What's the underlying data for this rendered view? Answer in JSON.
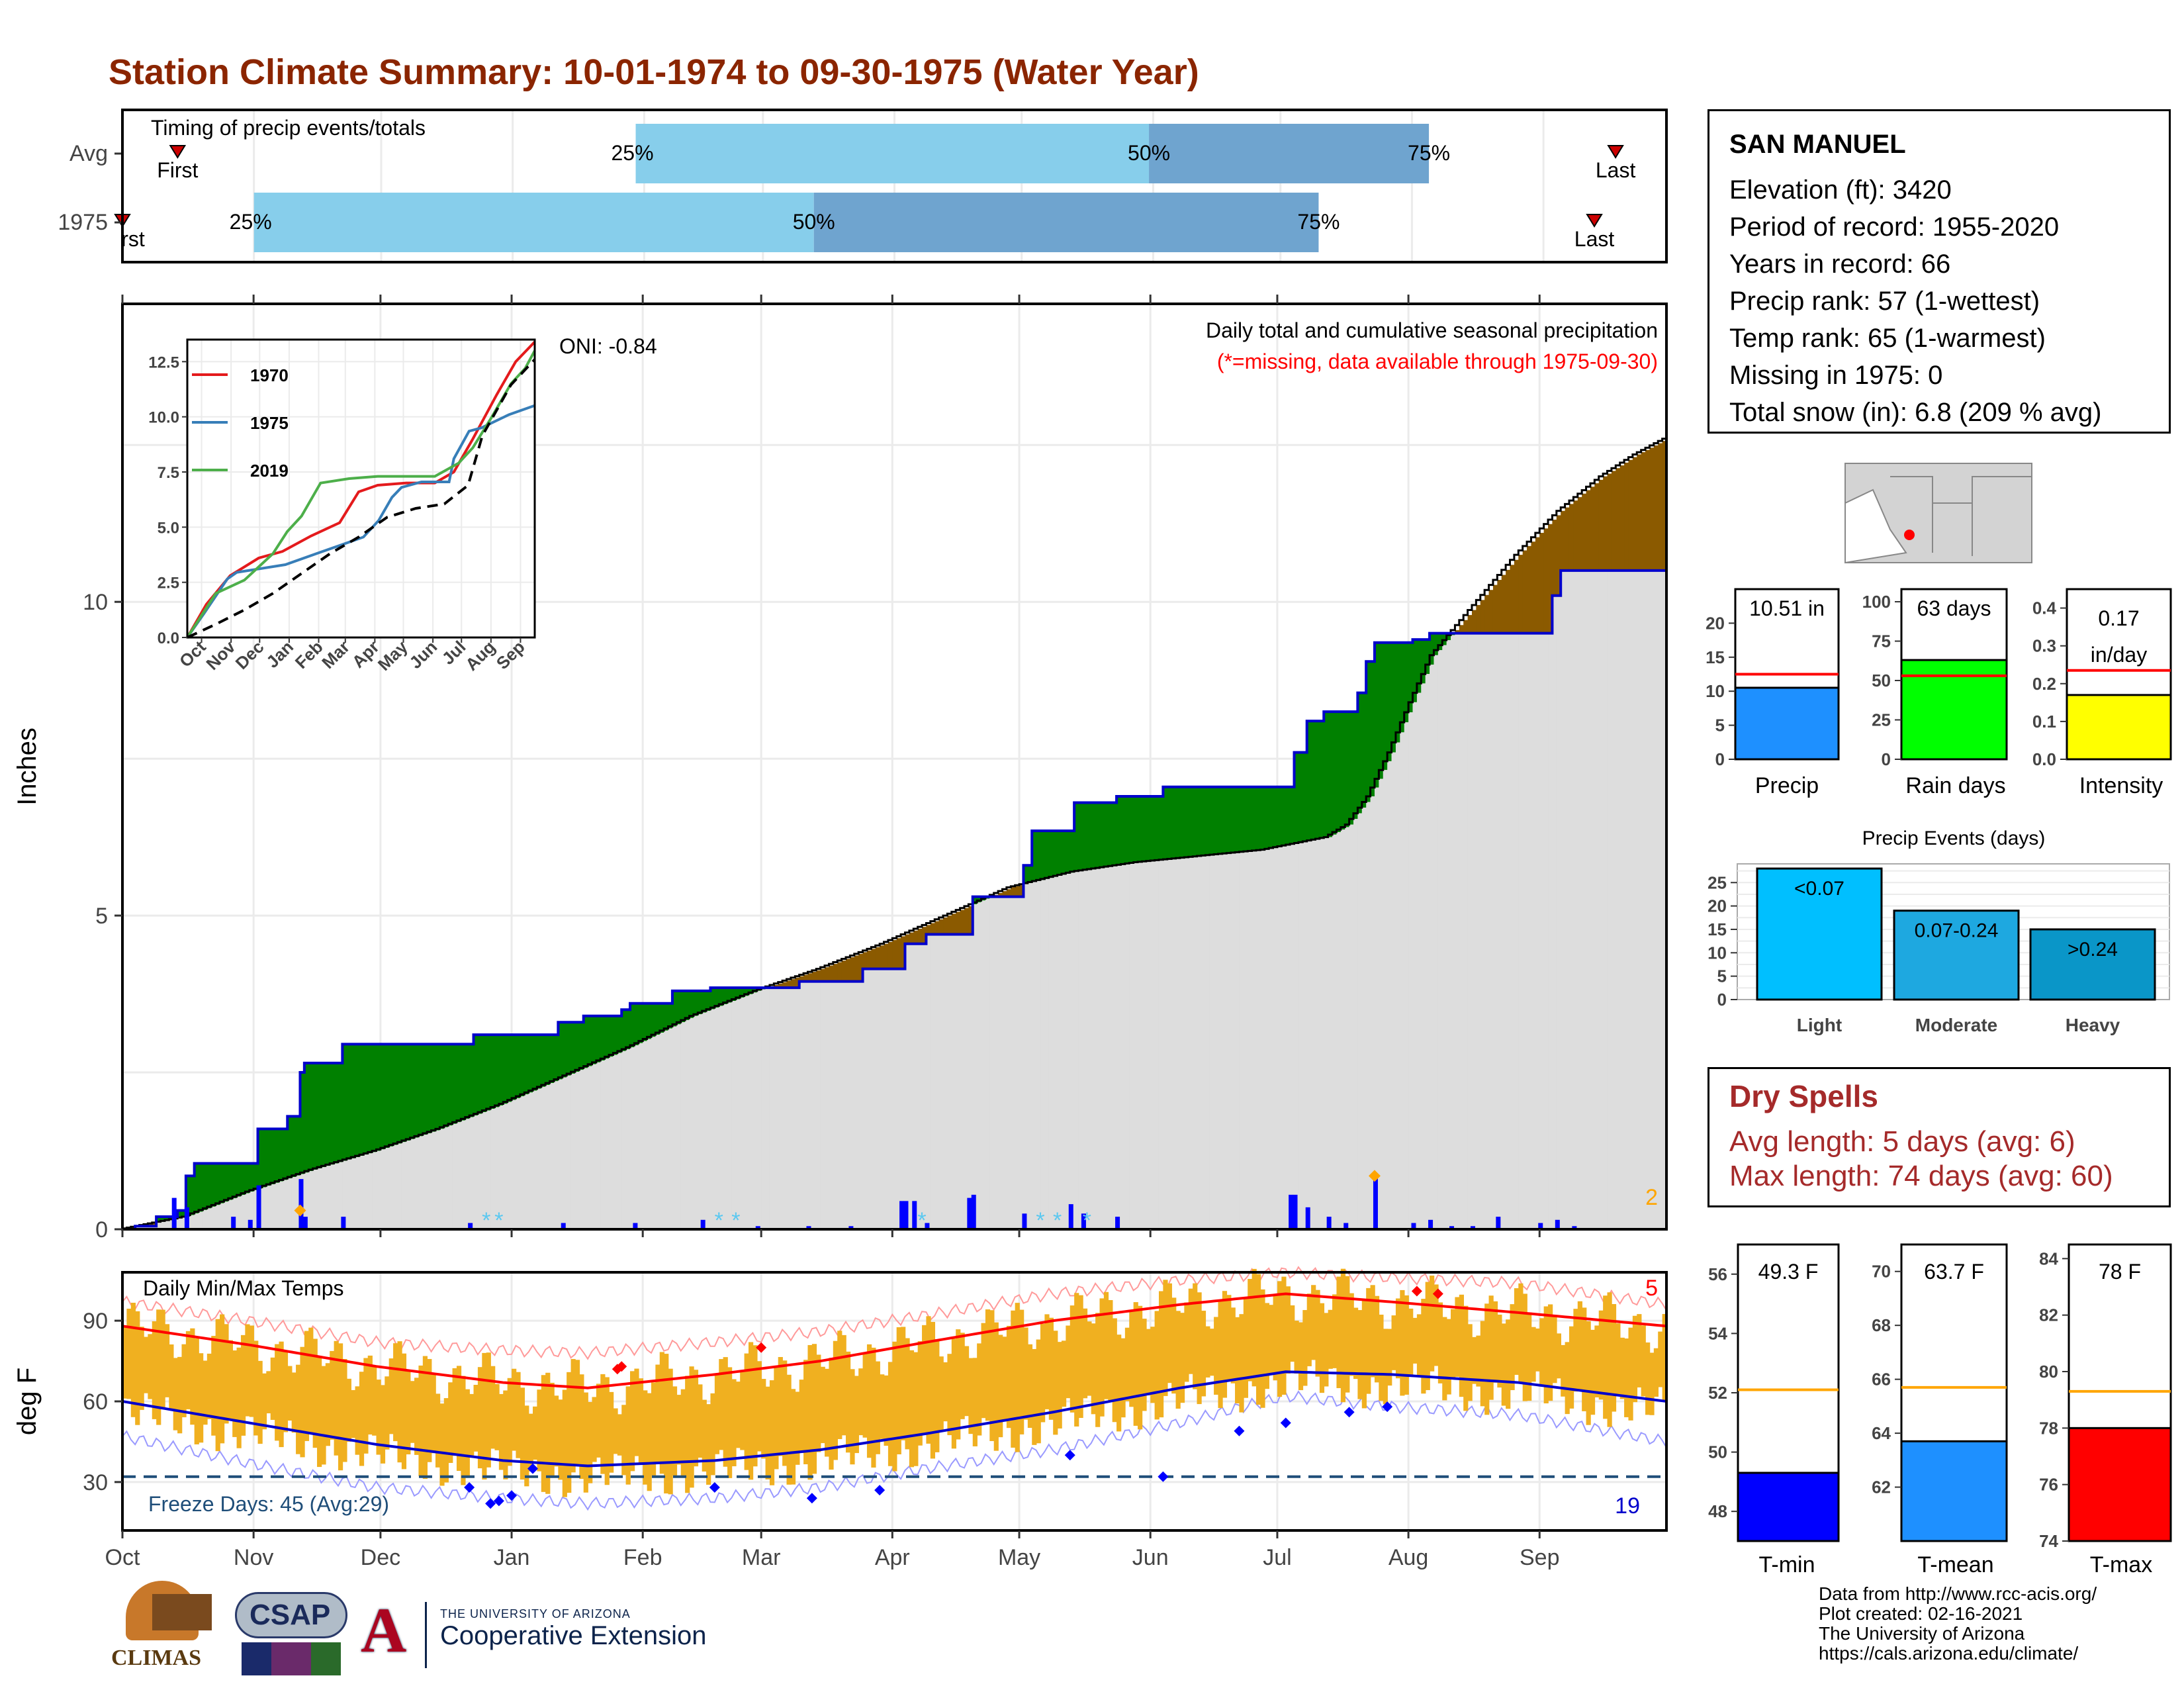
{
  "title": "Station Climate Summary: 10-01-1974 to 09-30-1975 (Water Year)",
  "timing": {
    "label": "Timing of precip events/totals",
    "rows": [
      {
        "name": "Avg",
        "first_day": 14,
        "q25_day": 122,
        "q50_day": 243,
        "q75_day": 309,
        "last_day": 353
      },
      {
        "name": "1975",
        "first_day": 1,
        "q25_day": 32,
        "q50_day": 164,
        "q75_day": 283,
        "last_day": 348
      }
    ],
    "first_label": "First",
    "first_label_1975": "rst",
    "last_label": "Last",
    "pct_labels": [
      "25%",
      "50%",
      "75%"
    ],
    "colors": {
      "light": "#87ceeb",
      "dark": "#6fa4cf",
      "marker": "#cc0000"
    }
  },
  "main_panel": {
    "ylabel": "Inches",
    "yticks": [
      0,
      5,
      10
    ],
    "caption1": "Daily total and cumulative seasonal precipitation",
    "caption2": "(*=missing, data available through 1975-09-30)",
    "oni": "ONI: -0.84",
    "corner_value": "2",
    "colors": {
      "above": "#008000",
      "below": "#8b5a00",
      "normal_fill": "#dddddd",
      "obs_line": "#0000cc",
      "daily_bar": "#0000ff"
    }
  },
  "inset": {
    "xlabels": [
      "Oct",
      "Nov",
      "Dec",
      "Jan",
      "Feb",
      "Mar",
      "Apr",
      "May",
      "Jun",
      "Jul",
      "Aug",
      "Sep"
    ],
    "yticks": [
      "0.0",
      "2.5",
      "5.0",
      "7.5",
      "10.0",
      "12.5"
    ],
    "legend": [
      {
        "name": "1970",
        "color": "#e41a1c"
      },
      {
        "name": "1975",
        "color": "#377eb8"
      },
      {
        "name": "2019",
        "color": "#4daf4a"
      }
    ]
  },
  "temp_panel": {
    "ylabel": "deg F",
    "title": "Daily Min/Max Temps",
    "yticks": [
      30,
      60,
      90
    ],
    "freeze_label": "Freeze Days: 45 (Avg:29)",
    "count_hot": "5",
    "count_cold": "19",
    "xlabels": [
      "Oct",
      "Nov",
      "Dec",
      "Jan",
      "Feb",
      "Mar",
      "Apr",
      "May",
      "Jun",
      "Jul",
      "Aug",
      "Sep"
    ],
    "colors": {
      "bar": "#f0b020",
      "max_line": "#ff0000",
      "min_line": "#0000cc",
      "freeze_line": "#1f4e79"
    }
  },
  "station": {
    "name": "SAN MANUEL",
    "lines": [
      "Elevation (ft): 3420",
      "Period of record: 1955-2020",
      "Years in record: 66",
      "Precip rank: 57 (1-wettest)",
      "Temp rank: 65 (1-warmest)",
      "Missing in 1975: 0",
      "Total snow (in): 6.8 (209 % avg)"
    ]
  },
  "stats_bars": [
    {
      "label": "Precip",
      "value_label": "10.51 in",
      "value": 10.51,
      "avg": 12.5,
      "ymax": 25,
      "yticks": [
        0,
        5,
        10,
        15,
        20
      ],
      "color": "#1e90ff"
    },
    {
      "label": "Rain days",
      "value_label": "63 days",
      "value": 63,
      "avg": 53,
      "ymax": 108,
      "yticks": [
        0,
        25,
        50,
        75,
        100
      ],
      "color": "#00ff00"
    },
    {
      "label": "Intensity",
      "value_label": "0.17 in/day",
      "value_label_1": "0.17",
      "value_label_2": "in/day",
      "value": 0.17,
      "avg": 0.235,
      "ymax": 0.45,
      "yticks": [
        "0.0",
        "0.1",
        "0.2",
        "0.3",
        "0.4"
      ],
      "color": "#ffff00"
    }
  ],
  "precip_events": {
    "title": "Precip Events (days)",
    "categories": [
      "Light",
      "Moderate",
      "Heavy"
    ],
    "bar_labels": [
      "<0.07",
      "0.07-0.24",
      ">0.24"
    ],
    "values": [
      28,
      19,
      15
    ],
    "yticks": [
      0,
      5,
      10,
      15,
      20,
      25
    ],
    "colors": [
      "#00bfff",
      "#1ea8e0",
      "#0a96c8"
    ]
  },
  "dry_spells": {
    "title": "Dry Spells",
    "line1": "Avg length: 5 days (avg: 6)",
    "line2": "Max length: 74 days (avg: 60)"
  },
  "temp_bars": [
    {
      "label": "T-min",
      "value_label": "49.3 F",
      "value": 49.3,
      "avg": 52.1,
      "ymin": 47,
      "ymax": 57,
      "yticks": [
        48,
        50,
        52,
        54,
        56
      ],
      "color": "#0000ff"
    },
    {
      "label": "T-mean",
      "value_label": "63.7 F",
      "value": 63.7,
      "avg": 65.7,
      "ymin": 60,
      "ymax": 71,
      "yticks": [
        62,
        64,
        66,
        68,
        70
      ],
      "color": "#1e90ff"
    },
    {
      "label": "T-max",
      "value_label": "78 F",
      "value": 78,
      "avg": 79.3,
      "ymin": 74,
      "ymax": 84.5,
      "yticks": [
        74,
        76,
        78,
        80,
        82,
        84
      ],
      "color": "#ff0000"
    }
  ],
  "credits": [
    "Data from http://www.rcc-acis.org/",
    "Plot created: 02-16-2021",
    "The University of Arizona",
    "https://cals.arizona.edu/climate/"
  ],
  "logos": {
    "climas": "CLIMAS",
    "csap": "CSAP",
    "ua_small": "THE UNIVERSITY OF ARIZONA",
    "ua_big": "Cooperative Extension"
  },
  "chart_data": [
    {
      "type": "area",
      "title": "Daily total and cumulative seasonal precipitation",
      "ylabel": "Inches",
      "ylim": [
        0,
        12.9
      ],
      "x_unit": "day of water year (1 = Oct 1)",
      "observed_cumulative": [
        [
          1,
          0
        ],
        [
          3,
          0.05
        ],
        [
          8,
          0.2
        ],
        [
          13,
          0.3
        ],
        [
          15,
          0.85
        ],
        [
          17,
          1.05
        ],
        [
          30,
          1.05
        ],
        [
          32,
          1.6
        ],
        [
          37,
          1.6
        ],
        [
          39,
          1.8
        ],
        [
          41,
          1.8
        ],
        [
          42,
          2.5
        ],
        [
          43,
          2.65
        ],
        [
          49,
          2.65
        ],
        [
          52,
          2.95
        ],
        [
          80,
          2.95
        ],
        [
          83,
          3.1
        ],
        [
          100,
          3.1
        ],
        [
          103,
          3.3
        ],
        [
          108,
          3.3
        ],
        [
          109,
          3.4
        ],
        [
          116,
          3.4
        ],
        [
          118,
          3.5
        ],
        [
          120,
          3.6
        ],
        [
          125,
          3.6
        ],
        [
          130,
          3.8
        ],
        [
          137,
          3.8
        ],
        [
          139,
          3.85
        ],
        [
          159,
          3.85
        ],
        [
          160,
          3.95
        ],
        [
          170,
          3.95
        ],
        [
          175,
          4.15
        ],
        [
          184,
          4.15
        ],
        [
          185,
          4.55
        ],
        [
          190,
          4.7
        ],
        [
          199,
          4.7
        ],
        [
          201,
          5.3
        ],
        [
          212,
          5.3
        ],
        [
          213,
          5.8
        ],
        [
          215,
          6.35
        ],
        [
          223,
          6.35
        ],
        [
          225,
          6.8
        ],
        [
          233,
          6.8
        ],
        [
          235,
          6.9
        ],
        [
          244,
          6.9
        ],
        [
          246,
          7.05
        ],
        [
          275,
          7.05
        ],
        [
          277,
          7.6
        ],
        [
          280,
          8.1
        ],
        [
          284,
          8.25
        ],
        [
          289,
          8.25
        ],
        [
          292,
          8.55
        ],
        [
          294,
          9.05
        ],
        [
          296,
          9.35
        ],
        [
          305,
          9.4
        ],
        [
          309,
          9.5
        ],
        [
          335,
          9.5
        ],
        [
          338,
          10.1
        ],
        [
          340,
          10.5
        ],
        [
          365,
          10.51
        ]
      ],
      "normal_cumulative": [
        [
          0,
          0
        ],
        [
          15,
          0.2
        ],
        [
          30,
          0.6
        ],
        [
          45,
          0.95
        ],
        [
          60,
          1.25
        ],
        [
          75,
          1.6
        ],
        [
          90,
          2.0
        ],
        [
          105,
          2.45
        ],
        [
          120,
          2.9
        ],
        [
          135,
          3.4
        ],
        [
          150,
          3.8
        ],
        [
          165,
          4.15
        ],
        [
          180,
          4.55
        ],
        [
          195,
          5.0
        ],
        [
          210,
          5.45
        ],
        [
          225,
          5.7
        ],
        [
          240,
          5.85
        ],
        [
          255,
          5.95
        ],
        [
          270,
          6.05
        ],
        [
          285,
          6.25
        ],
        [
          290,
          6.45
        ],
        [
          295,
          6.9
        ],
        [
          300,
          7.6
        ],
        [
          305,
          8.4
        ],
        [
          310,
          9.15
        ],
        [
          320,
          9.95
        ],
        [
          330,
          10.75
        ],
        [
          340,
          11.45
        ],
        [
          350,
          12.0
        ],
        [
          358,
          12.35
        ],
        [
          365,
          12.6
        ]
      ],
      "daily_bars": [
        [
          12,
          0.5
        ],
        [
          15,
          0.35
        ],
        [
          26,
          0.2
        ],
        [
          30,
          0.15
        ],
        [
          32,
          0.7
        ],
        [
          42,
          0.8
        ],
        [
          43,
          0.2
        ],
        [
          52,
          0.2
        ],
        [
          82,
          0.1
        ],
        [
          104,
          0.1
        ],
        [
          121,
          0.1
        ],
        [
          137,
          0.15
        ],
        [
          150,
          0.05
        ],
        [
          162,
          0.05
        ],
        [
          172,
          0.05
        ],
        [
          184,
          0.45
        ],
        [
          185,
          0.45
        ],
        [
          187,
          0.45
        ],
        [
          190,
          0.1
        ],
        [
          200,
          0.5
        ],
        [
          201,
          0.55
        ],
        [
          213,
          0.25
        ],
        [
          224,
          0.4
        ],
        [
          227,
          0.25
        ],
        [
          235,
          0.2
        ],
        [
          276,
          0.55
        ],
        [
          277,
          0.55
        ],
        [
          280,
          0.35
        ],
        [
          285,
          0.2
        ],
        [
          289,
          0.1
        ],
        [
          296,
          0.85
        ],
        [
          305,
          0.1
        ],
        [
          309,
          0.15
        ],
        [
          314,
          0.05
        ],
        [
          319,
          0.05
        ],
        [
          325,
          0.2
        ],
        [
          335,
          0.1
        ],
        [
          339,
          0.15
        ],
        [
          343,
          0.05
        ]
      ]
    },
    {
      "type": "line",
      "title": "",
      "x_categories": [
        "Oct",
        "Nov",
        "Dec",
        "Jan",
        "Feb",
        "Mar",
        "Apr",
        "May",
        "Jun",
        "Jul",
        "Aug",
        "Sep"
      ],
      "ylim": [
        0,
        13.5
      ],
      "series": [
        {
          "name": "1970",
          "points": [
            [
              0,
              0
            ],
            [
              20,
              1.5
            ],
            [
              45,
              2.8
            ],
            [
              75,
              3.6
            ],
            [
              100,
              3.9
            ],
            [
              130,
              4.6
            ],
            [
              160,
              5.2
            ],
            [
              180,
              6.6
            ],
            [
              200,
              6.9
            ],
            [
              230,
              7.0
            ],
            [
              260,
              7.0
            ],
            [
              280,
              7.5
            ],
            [
              300,
              9.0
            ],
            [
              325,
              11.0
            ],
            [
              345,
              12.5
            ],
            [
              365,
              13.4
            ]
          ]
        },
        {
          "name": "1975",
          "points": [
            [
              0,
              0
            ],
            [
              17,
              1.05
            ],
            [
              42,
              2.65
            ],
            [
              52,
              2.95
            ],
            [
              103,
              3.3
            ],
            [
              139,
              3.85
            ],
            [
              185,
              4.55
            ],
            [
              201,
              5.3
            ],
            [
              215,
              6.35
            ],
            [
              225,
              6.8
            ],
            [
              246,
              7.05
            ],
            [
              275,
              7.05
            ],
            [
              280,
              8.1
            ],
            [
              296,
              9.35
            ],
            [
              309,
              9.5
            ],
            [
              338,
              10.1
            ],
            [
              365,
              10.51
            ]
          ]
        },
        {
          "name": "2019",
          "points": [
            [
              0,
              0
            ],
            [
              30,
              2.0
            ],
            [
              60,
              2.6
            ],
            [
              90,
              3.8
            ],
            [
              105,
              4.8
            ],
            [
              120,
              5.5
            ],
            [
              140,
              7.0
            ],
            [
              170,
              7.2
            ],
            [
              200,
              7.3
            ],
            [
              230,
              7.3
            ],
            [
              260,
              7.3
            ],
            [
              285,
              7.9
            ],
            [
              300,
              8.6
            ],
            [
              320,
              10.0
            ],
            [
              340,
              11.5
            ],
            [
              355,
              12.2
            ],
            [
              365,
              13.0
            ]
          ]
        },
        {
          "name": "",
          "points": [
            [
              0,
              0
            ],
            [
              30,
              0.6
            ],
            [
              60,
              1.25
            ],
            [
              90,
              2.0
            ],
            [
              120,
              2.9
            ],
            [
              150,
              3.8
            ],
            [
              180,
              4.55
            ],
            [
              210,
              5.45
            ],
            [
              240,
              5.85
            ],
            [
              270,
              6.05
            ],
            [
              295,
              6.9
            ],
            [
              310,
              9.15
            ],
            [
              340,
              11.45
            ],
            [
              365,
              12.6
            ]
          ]
        }
      ]
    },
    {
      "type": "bar",
      "title": "Daily Min/Max Temps",
      "ylabel": "deg F",
      "ylim": [
        12,
        108
      ],
      "avg_max": [
        [
          0,
          88
        ],
        [
          30,
          81
        ],
        [
          60,
          73
        ],
        [
          90,
          67
        ],
        [
          110,
          65
        ],
        [
          140,
          70
        ],
        [
          165,
          75
        ],
        [
          190,
          82
        ],
        [
          220,
          90
        ],
        [
          250,
          96
        ],
        [
          275,
          100
        ],
        [
          300,
          97
        ],
        [
          330,
          93
        ],
        [
          365,
          88
        ]
      ],
      "avg_min": [
        [
          0,
          60
        ],
        [
          30,
          52
        ],
        [
          60,
          44
        ],
        [
          90,
          38
        ],
        [
          110,
          36
        ],
        [
          140,
          38
        ],
        [
          165,
          42
        ],
        [
          190,
          48
        ],
        [
          220,
          56
        ],
        [
          250,
          65
        ],
        [
          275,
          71
        ],
        [
          300,
          70
        ],
        [
          330,
          67
        ],
        [
          365,
          60
        ]
      ],
      "record_high": [
        [
          0,
          97
        ],
        [
          30,
          90
        ],
        [
          60,
          82
        ],
        [
          90,
          79
        ],
        [
          110,
          78
        ],
        [
          140,
          82
        ],
        [
          165,
          86
        ],
        [
          190,
          92
        ],
        [
          220,
          100
        ],
        [
          250,
          105
        ],
        [
          275,
          108
        ],
        [
          300,
          106
        ],
        [
          330,
          104
        ],
        [
          365,
          96
        ]
      ],
      "record_low": [
        [
          0,
          47
        ],
        [
          30,
          37
        ],
        [
          60,
          28
        ],
        [
          90,
          24
        ],
        [
          110,
          22
        ],
        [
          140,
          24
        ],
        [
          165,
          28
        ],
        [
          190,
          35
        ],
        [
          220,
          42
        ],
        [
          250,
          52
        ],
        [
          275,
          62
        ],
        [
          300,
          58
        ],
        [
          330,
          55
        ],
        [
          365,
          45
        ]
      ],
      "freeze_line": 32
    }
  ]
}
